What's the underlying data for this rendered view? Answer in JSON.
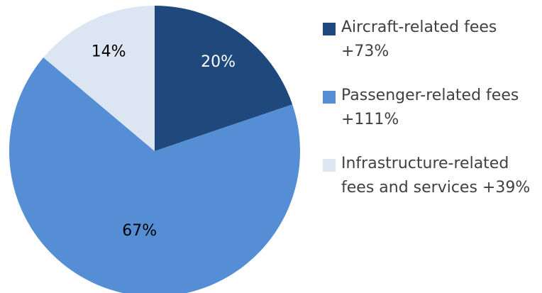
{
  "chart_data": {
    "type": "pie",
    "categories": [
      "Aircraft-related fees +73%",
      "Passenger-related fees +111%",
      "Infrastructure-related fees and services +39%"
    ],
    "values": [
      20,
      67,
      14
    ],
    "value_labels": [
      "20%",
      "67%",
      "14%"
    ],
    "colors": [
      "#1f497d",
      "#558ed5",
      "#dce6f2"
    ],
    "label_colors": [
      "#ffffff",
      "#000000",
      "#000000"
    ],
    "legend": "right"
  }
}
